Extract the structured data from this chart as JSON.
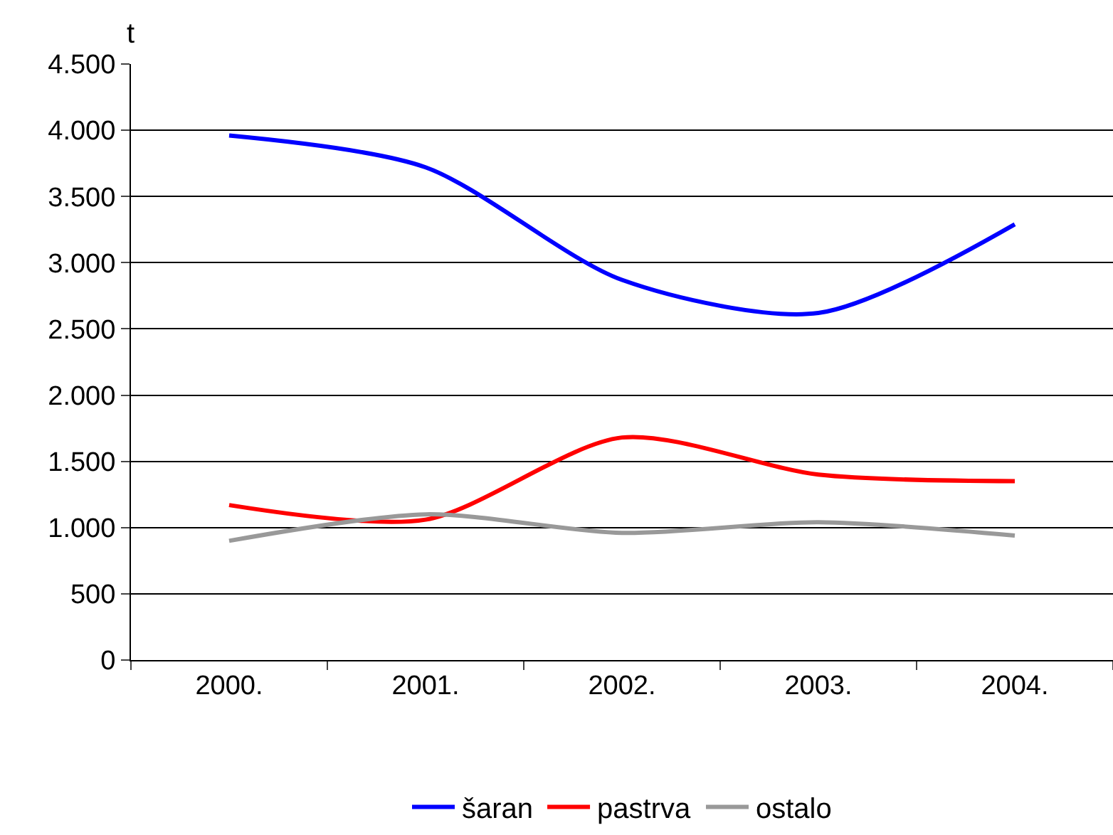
{
  "chart_data": {
    "type": "line",
    "ylabel": "t",
    "categories": [
      "2000.",
      "2001.",
      "2002.",
      "2003.",
      "2004."
    ],
    "series": [
      {
        "name": "šaran",
        "color": "#0000ff",
        "values": [
          3960,
          3720,
          2870,
          2620,
          3290
        ]
      },
      {
        "name": "pastrva",
        "color": "#ff0000",
        "values": [
          1170,
          1060,
          1680,
          1400,
          1350
        ]
      },
      {
        "name": "ostalo",
        "color": "#999999",
        "values": [
          900,
          1100,
          960,
          1040,
          940
        ]
      }
    ],
    "ylim": [
      0,
      4500
    ],
    "yticks": [
      0,
      500,
      {
        "value": 1000,
        "label": "1.000"
      },
      {
        "value": 1500,
        "label": "1.500"
      },
      {
        "value": 2000,
        "label": "2.000"
      },
      {
        "value": 2500,
        "label": "2.500"
      },
      {
        "value": 3000,
        "label": "3.000"
      },
      {
        "value": 3500,
        "label": "3.500"
      },
      {
        "value": 4000,
        "label": "4.000"
      },
      {
        "value": 4500,
        "label": "4.500"
      }
    ],
    "grid": "y",
    "legend": "bottom",
    "marker": "none",
    "line_style": "solid"
  }
}
